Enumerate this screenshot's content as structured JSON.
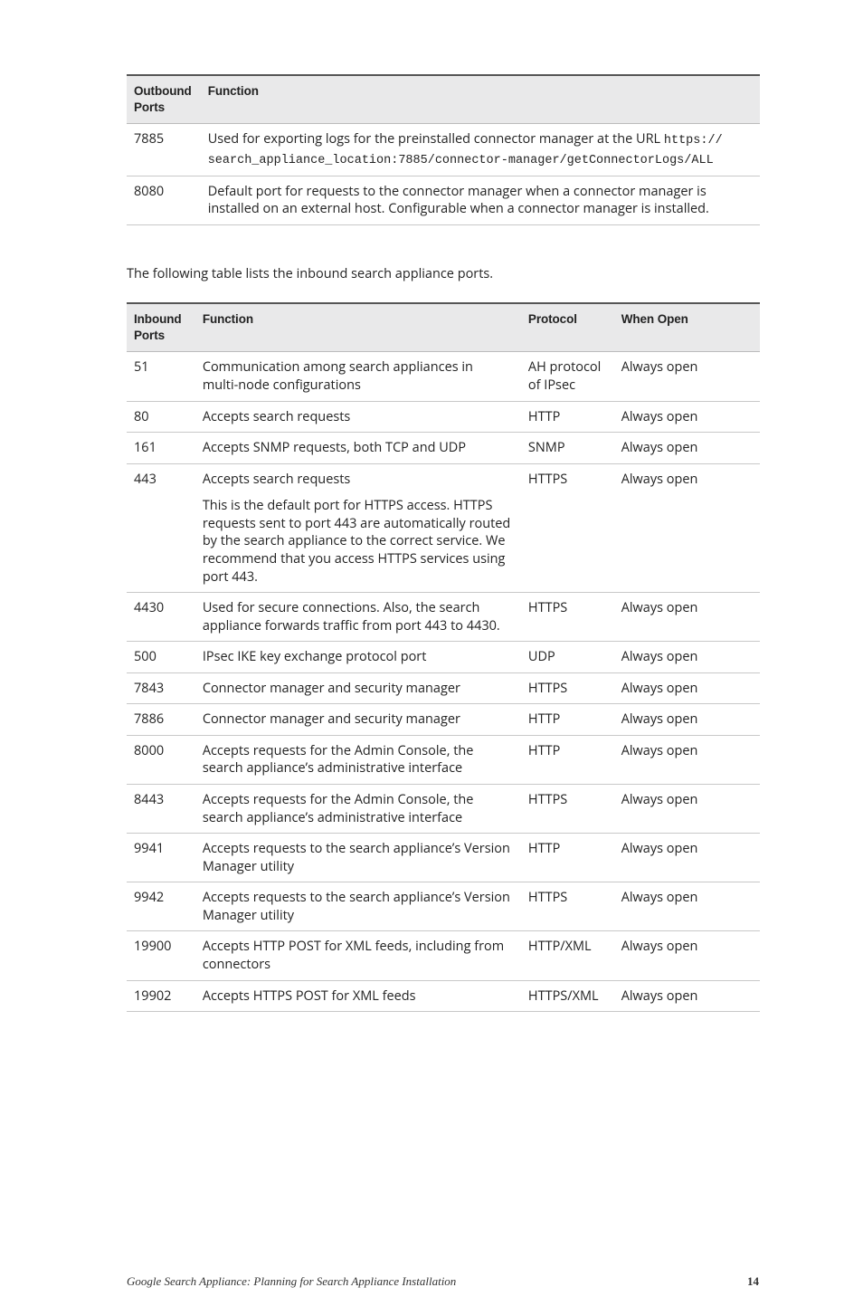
{
  "outbound_table": {
    "columns": [
      "Outbound Ports",
      "Function"
    ],
    "col_widths": [
      "80px",
      "620px"
    ],
    "rows": [
      {
        "port": "7885",
        "function_pre": "Used for exporting logs for the preinstalled connector manager at the URL ",
        "url1": "https://",
        "url2": "search_appliance_location:7885/connector-manager/getConnectorLogs/ALL"
      },
      {
        "port": "8080",
        "function": "Default port for requests to the connector manager when a connector manager is installed on an external host. Configurable when a connector manager is installed."
      }
    ]
  },
  "narrative": "The following table lists the inbound search appliance ports.",
  "inbound_table": {
    "columns": [
      "Inbound Ports",
      "Function",
      "Protocol",
      "When Open"
    ],
    "col_widths": [
      "70px",
      "335px",
      "95px",
      "150px"
    ],
    "rows": [
      {
        "port": "51",
        "function": "Communication among search appliances in multi-node configurations",
        "protocol": "AH protocol of IPsec",
        "when": "Always open"
      },
      {
        "port": "80",
        "function": "Accepts search requests",
        "protocol": "HTTP",
        "when": "Always open"
      },
      {
        "port": "161",
        "function": "Accepts SNMP requests, both TCP and UDP",
        "protocol": "SNMP",
        "when": "Always open"
      },
      {
        "port": "443",
        "function_p1": "Accepts search requests",
        "function_p2": "This is the default port for HTTPS access. HTTPS requests sent to port 443 are automatically routed by the search appliance to the correct service. We recommend that you access HTTPS services using port 443.",
        "protocol": "HTTPS",
        "when": "Always open"
      },
      {
        "port": "4430",
        "function": "Used for secure connections. Also, the search appliance forwards traffic from port 443 to 4430.",
        "protocol": "HTTPS",
        "when": "Always open"
      },
      {
        "port": "500",
        "function": "IPsec IKE key exchange protocol port",
        "protocol": "UDP",
        "when": "Always open"
      },
      {
        "port": "7843",
        "function": "Connector manager and security manager",
        "protocol": "HTTPS",
        "when": "Always open"
      },
      {
        "port": "7886",
        "function": "Connector manager and security manager",
        "protocol": "HTTP",
        "when": "Always open"
      },
      {
        "port": "8000",
        "function": "Accepts requests for the Admin Console, the search appliance’s administrative interface",
        "protocol": "HTTP",
        "when": "Always open"
      },
      {
        "port": "8443",
        "function": "Accepts requests for the Admin Console, the search appliance’s administrative interface",
        "protocol": "HTTPS",
        "when": "Always open"
      },
      {
        "port": "9941",
        "function": "Accepts requests to the search appliance’s Version Manager utility",
        "protocol": "HTTP",
        "when": "Always open"
      },
      {
        "port": "9942",
        "function": "Accepts requests to the search appliance’s Version Manager utility",
        "protocol": "HTTPS",
        "when": "Always open"
      },
      {
        "port": "19900",
        "function": "Accepts HTTP POST for XML feeds, including from connectors",
        "protocol": "HTTP/XML",
        "when": "Always open"
      },
      {
        "port": "19902",
        "function": "Accepts HTTPS POST for XML feeds",
        "protocol": "HTTPS/XML",
        "when": "Always open"
      }
    ]
  },
  "footer": {
    "title": "Google Search Appliance: Planning for Search Appliance Installation",
    "page": "14"
  },
  "style": {
    "header_bg": "#e9e9ea",
    "border_top": "#555555",
    "row_border": "#c8c8c8",
    "text_color": "#222222",
    "background": "#ffffff",
    "header_fontsize": 13.5,
    "cell_fontsize": 14.5,
    "mono_fontsize": 13.5,
    "footer_fontsize": 13
  }
}
